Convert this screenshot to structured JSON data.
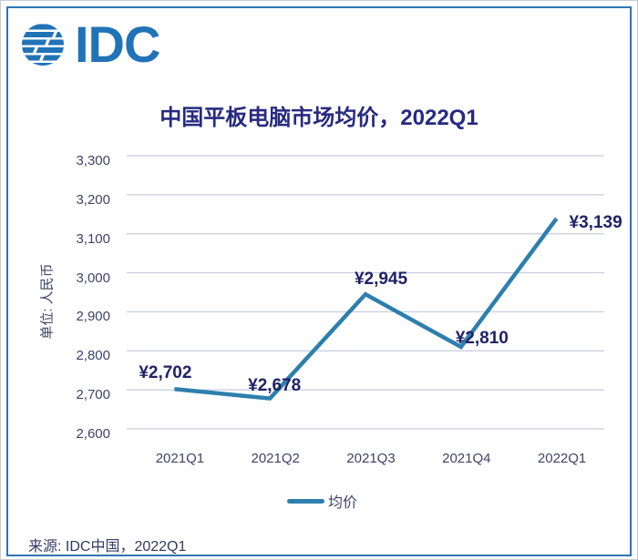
{
  "header": {
    "logo_text": "IDC"
  },
  "chart_data": {
    "type": "line",
    "title": "中国平板电脑市场均价，2022Q1",
    "ylabel": "单位: 人民币",
    "xlabel": "",
    "categories": [
      "2021Q1",
      "2021Q2",
      "2021Q3",
      "2021Q4",
      "2022Q1"
    ],
    "series": [
      {
        "name": "均价",
        "values": [
          2702,
          2678,
          2945,
          2810,
          3139
        ]
      }
    ],
    "point_labels": [
      "¥2,702",
      "¥2,678",
      "¥2,945",
      "¥2,810",
      "¥3,139"
    ],
    "ylim": [
      2600,
      3300
    ],
    "ytick_step": 100,
    "ytick_labels": [
      "3,300",
      "3,200",
      "3,100",
      "3,000",
      "2,900",
      "2,800",
      "2,700",
      "2,600"
    ],
    "grid": true,
    "legend": {
      "label": "均价",
      "position": "bottom"
    },
    "colors": {
      "line": "#2d7fae",
      "grid": "#c6cbde",
      "title": "#272a80",
      "data_label": "#1f2366",
      "axis_text": "#3e4369",
      "source_text": "#333a63",
      "logo": "#2173b8",
      "frame": "#2e75b6",
      "outer_edge": "#c9ccd4"
    }
  },
  "footer": {
    "source": "来源: IDC中国，2022Q1"
  }
}
